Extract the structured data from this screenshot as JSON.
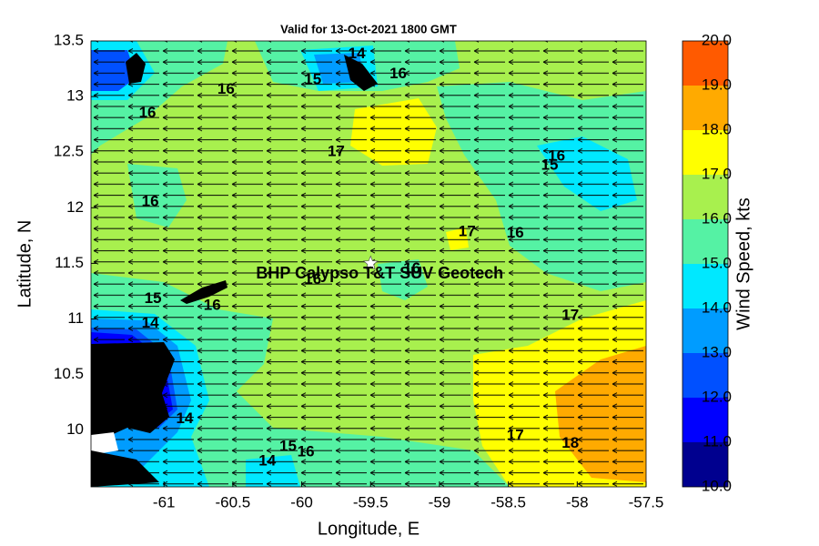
{
  "chart_data": {
    "type": "contour",
    "title": "Valid for 13-Oct-2021 1800 GMT",
    "x_label": "Longitude, E",
    "y_label": "Latitude, N",
    "xlim": [
      -61.53,
      -57.5
    ],
    "ylim": [
      9.49,
      13.5
    ],
    "xticks": [
      -61,
      -60.5,
      -60,
      -59.5,
      -59,
      -58.5,
      -58,
      -57.5
    ],
    "yticks": [
      10,
      10.5,
      11,
      11.5,
      12,
      12.5,
      13,
      13.5
    ],
    "colorbar": {
      "label": "Wind Speed, kts",
      "lim": [
        10,
        20
      ],
      "ticks": [
        {
          "value": 10,
          "label": "10.0"
        },
        {
          "value": 11,
          "label": "11.0"
        },
        {
          "value": 12,
          "label": "12.0"
        },
        {
          "value": 13,
          "label": "13.0"
        },
        {
          "value": 14,
          "label": "14.0"
        },
        {
          "value": 15,
          "label": "15.0"
        },
        {
          "value": 16,
          "label": "16.0"
        },
        {
          "value": 17,
          "label": "17.0"
        },
        {
          "value": 18,
          "label": "18.0"
        },
        {
          "value": 19,
          "label": "19.0"
        },
        {
          "value": 20,
          "label": "20.0"
        }
      ],
      "colors": [
        "#00008f",
        "#0000ff",
        "#0050ff",
        "#009cff",
        "#00e8ff",
        "#55f2a4",
        "#a8f04e",
        "#ffff00",
        "#ffaa00",
        "#ff5a00"
      ]
    },
    "annotations": [
      {
        "text": "BHP Calypso T&T SUV Geotech",
        "x": -59.5,
        "y": 11.5
      }
    ],
    "contour_labels": [
      {
        "value": 14,
        "x": -59.6,
        "y": 13.38
      },
      {
        "value": 16,
        "x": -59.3,
        "y": 13.2
      },
      {
        "value": 15,
        "x": -59.92,
        "y": 13.15
      },
      {
        "value": 16,
        "x": -60.55,
        "y": 13.06
      },
      {
        "value": 16,
        "x": -61.12,
        "y": 12.85
      },
      {
        "value": 17,
        "x": -59.75,
        "y": 12.5
      },
      {
        "value": 16,
        "x": -58.15,
        "y": 12.46
      },
      {
        "value": 15,
        "x": -58.2,
        "y": 12.38
      },
      {
        "value": 16,
        "x": -61.1,
        "y": 12.05
      },
      {
        "value": 17,
        "x": -58.8,
        "y": 11.78
      },
      {
        "value": 16,
        "x": -58.45,
        "y": 11.77
      },
      {
        "value": 16,
        "x": -59.2,
        "y": 11.45
      },
      {
        "value": 16,
        "x": -59.92,
        "y": 11.35
      },
      {
        "value": 16,
        "x": -60.65,
        "y": 11.12
      },
      {
        "value": 15,
        "x": -61.08,
        "y": 11.18
      },
      {
        "value": 14,
        "x": -61.1,
        "y": 10.96
      },
      {
        "value": 17,
        "x": -58.05,
        "y": 11.03
      },
      {
        "value": 14,
        "x": -60.85,
        "y": 10.1
      },
      {
        "value": 15,
        "x": -60.1,
        "y": 9.85
      },
      {
        "value": 16,
        "x": -59.97,
        "y": 9.8
      },
      {
        "value": 14,
        "x": -60.25,
        "y": 9.72
      },
      {
        "value": 17,
        "x": -58.45,
        "y": 9.95
      },
      {
        "value": 18,
        "x": -58.05,
        "y": 9.88
      }
    ]
  }
}
